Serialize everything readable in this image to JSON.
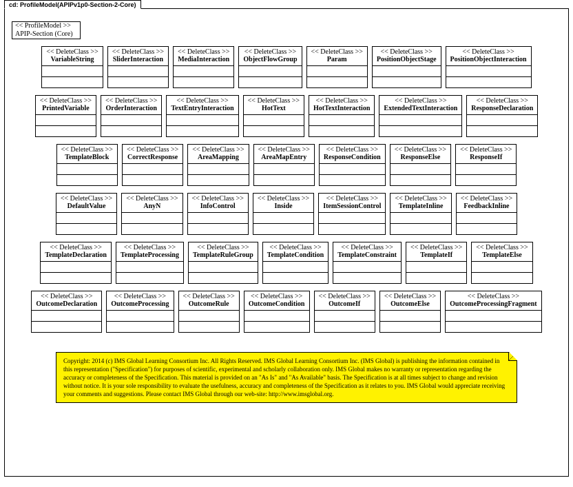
{
  "tab_label": "cd: ProfileModel(APIPv1p0-Section-2-Core)",
  "profile": {
    "stereo": "<< ProfileModel  >>",
    "name": "APIP-Section (Core)"
  },
  "del": "<< DeleteClass  >>",
  "rows": [
    [
      "VariableString",
      "SliderInteraction",
      "MediaInteraction",
      "ObjectFlowGroup",
      "Param",
      "PositionObjectStage",
      "PositionObjectInteraction"
    ],
    [
      "PrintedVariable",
      "OrderInteraction",
      "TextEntryInteraction",
      "HotText",
      "HotTextInteraction",
      "ExtendedTextInteraction",
      "ResponseDeclaration"
    ],
    [
      "TemplateBlock",
      "CorrectResponse",
      "AreaMapping",
      "AreaMapEntry",
      "ResponseCondition",
      "ResponseElse",
      "ResponseIf"
    ],
    [
      "DefaultValue",
      "AnyN",
      "InfoControl",
      "Inside",
      "ItemSessionControl",
      "TemplateInline",
      "FeedbackInline"
    ],
    [
      "TemplateDeclaration",
      "TemplateProcessing",
      "TemplateRuleGroup",
      "TemplateCondition",
      "TemplateConstraint",
      "TemplateIf",
      "TemplateElse"
    ],
    [
      "OutcomeDeclaration",
      "OutcomeProcessing",
      "OutcomeRule",
      "OutcomeCondition",
      "OutcomeIf",
      "OutcomeElse",
      "OutcomeProcessingFragment"
    ]
  ],
  "note_text": "Copyright: 2014 (c) IMS Global Learning Consortium Inc.  All Rights Reserved.  IMS Global Learning Consortium Inc. (IMS Global) is publishing the information contained in this representation (\"Specification\") for purposes of scientific, experimental and scholarly collaboration only.  IMS Global makes no warranty or representation regarding the accuracy or completeness of the Specification.  This material is provided on an \"As Is\" and \"As Available\" basis.  The Specification is at all times subject to change and revision without notice.  It is your sole responsibility to evaluate the usefulness, accuracy and completeness of the Specification as it relates to you.  IMS Global would appreciate receiving your comments and suggestions.  Please contact IMS Global through our web-site: http://www.imsglobal.org.",
  "colors": {
    "note_bg": "#fff200",
    "border": "#000000",
    "page_bg": "#ffffff"
  }
}
